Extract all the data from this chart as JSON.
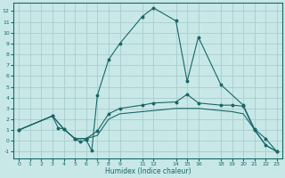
{
  "xlabel": "Humidex (Indice chaleur)",
  "bg_color": "#c8e8e8",
  "grid_color": "#a8cccc",
  "line_color": "#1a6666",
  "xlim": [
    -0.5,
    23.5
  ],
  "ylim": [
    -1.6,
    12.8
  ],
  "xticks": [
    0,
    1,
    2,
    3,
    4,
    5,
    6,
    7,
    8,
    9,
    11,
    12,
    14,
    15,
    16,
    18,
    19,
    20,
    21,
    22,
    23
  ],
  "yticks": [
    -1,
    0,
    1,
    2,
    3,
    4,
    5,
    6,
    7,
    8,
    9,
    10,
    11,
    12
  ],
  "curve1_x": [
    0,
    3,
    3.5,
    4,
    5,
    5.5,
    6,
    6.5,
    7,
    8,
    9,
    11,
    12,
    14,
    15,
    16,
    18,
    20,
    21,
    22,
    23
  ],
  "curve1_y": [
    1,
    2.3,
    1.2,
    1.1,
    0.2,
    -0.1,
    0.1,
    -0.9,
    4.2,
    7.5,
    9.0,
    11.5,
    12.3,
    11.1,
    5.5,
    9.6,
    5.2,
    3.3,
    1.1,
    0.2,
    -1.0
  ],
  "curve2_x": [
    0,
    3,
    4,
    5,
    6,
    6,
    7,
    8,
    9,
    11,
    12,
    14,
    15,
    16,
    18,
    19,
    20,
    21,
    22,
    23
  ],
  "curve2_y": [
    1,
    2.3,
    1.1,
    0.2,
    0.2,
    0.2,
    0.9,
    2.5,
    3.0,
    3.3,
    3.5,
    3.6,
    4.3,
    3.5,
    3.3,
    3.3,
    3.2,
    1.0,
    -0.4,
    -1.0
  ],
  "curve3_x": [
    0,
    3,
    4,
    5,
    6,
    7,
    8,
    9,
    11,
    12,
    14,
    16,
    18,
    19,
    20,
    22,
    23
  ],
  "curve3_y": [
    1,
    2.3,
    1.1,
    0.2,
    0.2,
    0.5,
    2.0,
    2.5,
    2.7,
    2.8,
    3.0,
    3.0,
    2.8,
    2.7,
    2.5,
    -0.4,
    -1.0
  ]
}
